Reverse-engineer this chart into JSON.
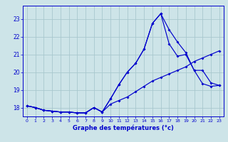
{
  "xlabel": "Graphe des températures (°c)",
  "ylim": [
    17.5,
    23.75
  ],
  "xlim": [
    -0.5,
    23.5
  ],
  "yticks": [
    18,
    19,
    20,
    21,
    22,
    23
  ],
  "xticks": [
    0,
    1,
    2,
    3,
    4,
    5,
    6,
    7,
    8,
    9,
    10,
    11,
    12,
    13,
    14,
    15,
    16,
    17,
    18,
    19,
    20,
    21,
    22,
    23
  ],
  "background_color": "#cde4e8",
  "grid_color": "#a8c8ce",
  "line_color": "#0000cc",
  "line1": {
    "x": [
      0,
      1,
      2,
      3,
      4,
      5,
      6,
      7,
      8,
      9,
      10,
      11,
      12,
      13,
      14,
      15,
      16,
      17,
      18,
      19,
      20,
      21,
      22,
      23
    ],
    "y": [
      18.1,
      18.0,
      17.85,
      17.8,
      17.75,
      17.75,
      17.7,
      17.7,
      18.0,
      17.75,
      18.2,
      18.4,
      18.6,
      18.9,
      19.2,
      19.5,
      19.7,
      19.9,
      20.1,
      20.3,
      20.6,
      20.8,
      21.0,
      21.2
    ]
  },
  "line2": {
    "x": [
      0,
      1,
      2,
      3,
      4,
      5,
      6,
      7,
      8,
      9,
      10,
      11,
      12,
      13,
      14,
      15,
      16,
      17,
      18,
      19,
      20,
      21,
      22,
      23
    ],
    "y": [
      18.1,
      18.0,
      17.85,
      17.8,
      17.75,
      17.75,
      17.7,
      17.7,
      18.0,
      17.75,
      18.5,
      19.3,
      20.0,
      20.5,
      21.3,
      22.75,
      23.3,
      22.4,
      21.7,
      21.1,
      20.1,
      19.35,
      19.2,
      19.25
    ]
  },
  "line3": {
    "x": [
      0,
      1,
      2,
      3,
      4,
      5,
      6,
      7,
      8,
      9,
      10,
      11,
      12,
      13,
      14,
      15,
      16,
      17,
      18,
      19,
      20,
      21,
      22,
      23
    ],
    "y": [
      18.1,
      18.0,
      17.85,
      17.8,
      17.75,
      17.75,
      17.7,
      17.7,
      18.0,
      17.75,
      18.5,
      19.3,
      20.0,
      20.5,
      21.3,
      22.75,
      23.3,
      21.6,
      20.9,
      21.0,
      20.1,
      20.1,
      19.4,
      19.25
    ]
  }
}
